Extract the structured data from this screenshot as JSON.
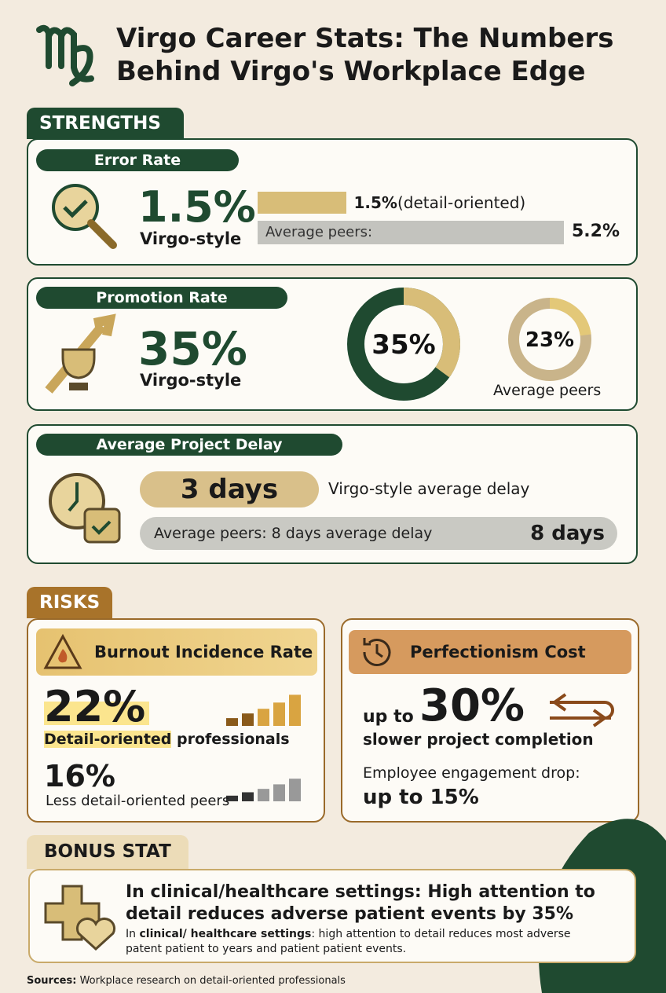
{
  "header": {
    "title": "Virgo Career Stats: The Numbers Behind Virgo's Workplace Edge"
  },
  "strengths": {
    "heading": "STRENGTHS",
    "error_rate": {
      "title": "Error Rate",
      "virgo": {
        "value": 1.5,
        "label": "1.5%"
      },
      "virgo_caption": "Virgo-style",
      "virgo_note": "(detail-oriented)",
      "peers_caption": "Average peers:",
      "peers": {
        "value": 5.2,
        "label": "5.2%"
      }
    },
    "promotion_rate": {
      "title": "Promotion Rate",
      "virgo": {
        "value": 35,
        "label": "35%"
      },
      "virgo_caption": "Virgo-style",
      "peers": {
        "value": 23,
        "label": "23%"
      },
      "peers_caption": "Average peers"
    },
    "project_delay": {
      "title": "Average Project Delay",
      "virgo": {
        "value": 3,
        "label": "3 days"
      },
      "virgo_caption": "Virgo-style average delay",
      "peers_caption": "Average peers: 8 days average delay",
      "peers": {
        "value": 8,
        "label": "8 days"
      }
    }
  },
  "risks": {
    "heading": "RISKS",
    "burnout": {
      "title": "Burnout Incidence Rate",
      "virgo": {
        "value": 22,
        "label": "22%"
      },
      "virgo_caption_highlight": "Detail-oriented",
      "virgo_caption_rest": "professionals",
      "peers": {
        "value": 16,
        "label": "16%"
      },
      "peers_caption": "Less detail-oriented peers"
    },
    "perfectionism": {
      "title": "Perfectionism Cost",
      "prefix": "up to",
      "value": "30%",
      "caption": "slower project completion",
      "engagement_caption": "Employee engagement drop:",
      "engagement_value": "up to 15%"
    }
  },
  "bonus": {
    "heading": "BONUS STAT",
    "headline": "In clinical/healthcare settings: High attention to detail reduces adverse patient events by 35%",
    "detail_prefix": "In",
    "detail_bold": "clinical/ healthcare settings",
    "detail_rest": ": high attention to detail reduces most adverse patent patient to years and patient patient events."
  },
  "sources": {
    "label": "Sources:",
    "text": "Workplace research on detail-oriented professionals"
  }
}
